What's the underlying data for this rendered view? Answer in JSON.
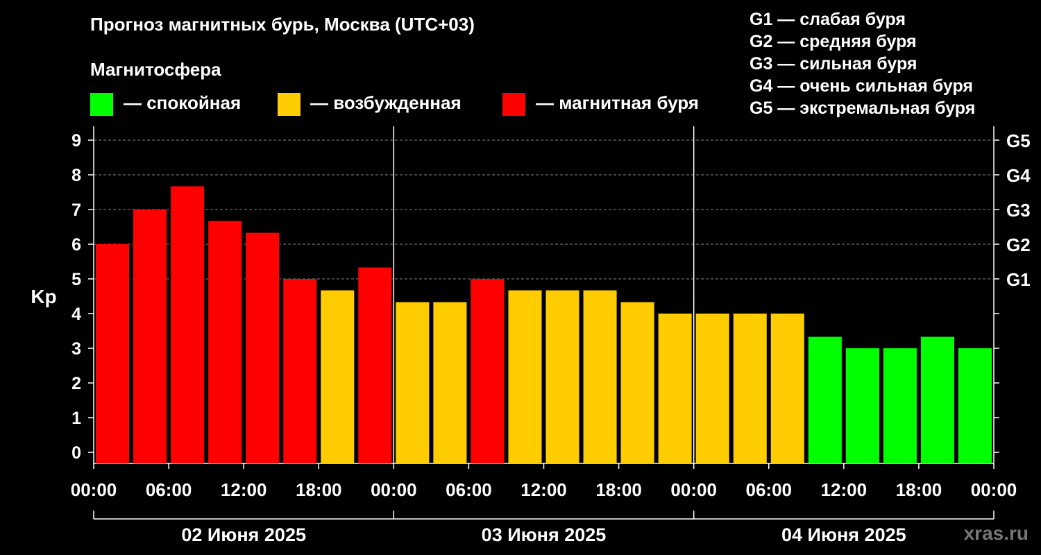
{
  "title": "Прогноз магнитных бурь, Москва (UTC+03)",
  "magnetosphere": {
    "title": "Магнитосфера",
    "legend": [
      {
        "label": "— спокойная",
        "color": "#00ff00"
      },
      {
        "label": "— возбужденная",
        "color": "#ffcc00"
      },
      {
        "label": "— магнитная буря",
        "color": "#ff0000"
      }
    ]
  },
  "storm_levels": [
    {
      "label": "G1 — слабая буря"
    },
    {
      "label": "G2 — средняя буря"
    },
    {
      "label": "G3 — сильная буря"
    },
    {
      "label": "G4 — очень сильная буря"
    },
    {
      "label": "G5 — экстремальная буря"
    }
  ],
  "watermark": "xras.ru",
  "chart_data": {
    "type": "bar",
    "ylabel": "Kp",
    "ylim": [
      0,
      9
    ],
    "y_ticks": [
      "0",
      "1",
      "2",
      "3",
      "4",
      "5",
      "6",
      "7",
      "8",
      "9"
    ],
    "right_axis_labels": [
      {
        "kp": 5,
        "label": "G1"
      },
      {
        "kp": 6,
        "label": "G2"
      },
      {
        "kp": 7,
        "label": "G3"
      },
      {
        "kp": 8,
        "label": "G4"
      },
      {
        "kp": 9,
        "label": "G5"
      }
    ],
    "x_tick_labels": [
      "00:00",
      "06:00",
      "12:00",
      "18:00",
      "00:00",
      "06:00",
      "12:00",
      "18:00",
      "00:00",
      "06:00",
      "12:00",
      "18:00",
      "00:00"
    ],
    "days": [
      "02 Июня 2025",
      "03 Июня 2025",
      "04 Июня 2025"
    ],
    "interval_hours": 3,
    "values": [
      6.0,
      7.0,
      7.67,
      6.67,
      6.33,
      5.0,
      4.67,
      5.33,
      4.33,
      4.33,
      5.0,
      4.67,
      4.67,
      4.67,
      4.33,
      4.0,
      4.0,
      4.0,
      4.0,
      3.33,
      3.0,
      3.0,
      3.33,
      3.0
    ],
    "grid": true,
    "colors": {
      "quiet": "#00ff00",
      "active": "#ffcc00",
      "storm": "#ff0000"
    }
  }
}
